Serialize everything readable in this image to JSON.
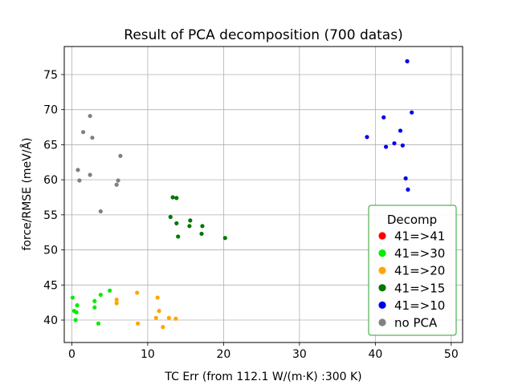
{
  "chart_data": {
    "type": "scatter",
    "title": "Result of PCA decomposition (700 datas)",
    "xlabel": "TC Err (from 112.1 W/(m·K) :300 K)",
    "ylabel": "force/RMSE (meV/Å)",
    "xlim": [
      -1,
      51.5
    ],
    "ylim": [
      36.8,
      79
    ],
    "xticks": [
      0,
      10,
      20,
      30,
      40,
      50
    ],
    "yticks": [
      40,
      45,
      50,
      55,
      60,
      65,
      70,
      75
    ],
    "grid": true,
    "legend": {
      "title": "Decomp",
      "placement": "lower-right"
    },
    "series": [
      {
        "name": "41=>41",
        "color": "#ff0000",
        "points": []
      },
      {
        "name": "41=>30",
        "color": "#00ee00",
        "points": [
          [
            0.1,
            43.2
          ],
          [
            0.3,
            41.3
          ],
          [
            0.6,
            41.1
          ],
          [
            0.5,
            40.0
          ],
          [
            0.7,
            42.1
          ],
          [
            3.0,
            42.7
          ],
          [
            3.0,
            41.8
          ],
          [
            3.5,
            39.5
          ],
          [
            3.8,
            43.6
          ],
          [
            5.0,
            44.2
          ]
        ]
      },
      {
        "name": "41=>20",
        "color": "#ffa500",
        "points": [
          [
            5.9,
            42.9
          ],
          [
            5.9,
            42.4
          ],
          [
            8.6,
            43.9
          ],
          [
            8.7,
            39.5
          ],
          [
            11.3,
            43.2
          ],
          [
            11.1,
            40.3
          ],
          [
            11.5,
            41.3
          ],
          [
            12.0,
            39.0
          ],
          [
            12.8,
            40.3
          ],
          [
            13.7,
            40.2
          ]
        ]
      },
      {
        "name": "41=>15",
        "color": "#007700",
        "points": [
          [
            13.3,
            57.5
          ],
          [
            13.8,
            57.4
          ],
          [
            13.0,
            54.7
          ],
          [
            13.8,
            53.8
          ],
          [
            14.0,
            51.9
          ],
          [
            15.6,
            54.2
          ],
          [
            15.5,
            53.4
          ],
          [
            17.2,
            53.4
          ],
          [
            17.1,
            52.3
          ],
          [
            20.2,
            51.7
          ]
        ]
      },
      {
        "name": "41=>10",
        "color": "#0000ee",
        "points": [
          [
            38.9,
            66.1
          ],
          [
            41.1,
            68.9
          ],
          [
            41.4,
            64.7
          ],
          [
            42.5,
            65.2
          ],
          [
            43.3,
            67.0
          ],
          [
            43.6,
            64.9
          ],
          [
            44.0,
            60.2
          ],
          [
            44.3,
            58.6
          ],
          [
            44.8,
            69.6
          ],
          [
            44.2,
            76.9
          ]
        ]
      },
      {
        "name": "no PCA",
        "color": "#808080",
        "points": [
          [
            1.5,
            66.8
          ],
          [
            2.4,
            69.1
          ],
          [
            2.7,
            66.0
          ],
          [
            0.8,
            61.4
          ],
          [
            1.0,
            59.9
          ],
          [
            2.4,
            60.7
          ],
          [
            6.1,
            59.9
          ],
          [
            5.9,
            59.3
          ],
          [
            6.4,
            63.4
          ],
          [
            3.8,
            55.5
          ]
        ]
      }
    ]
  }
}
